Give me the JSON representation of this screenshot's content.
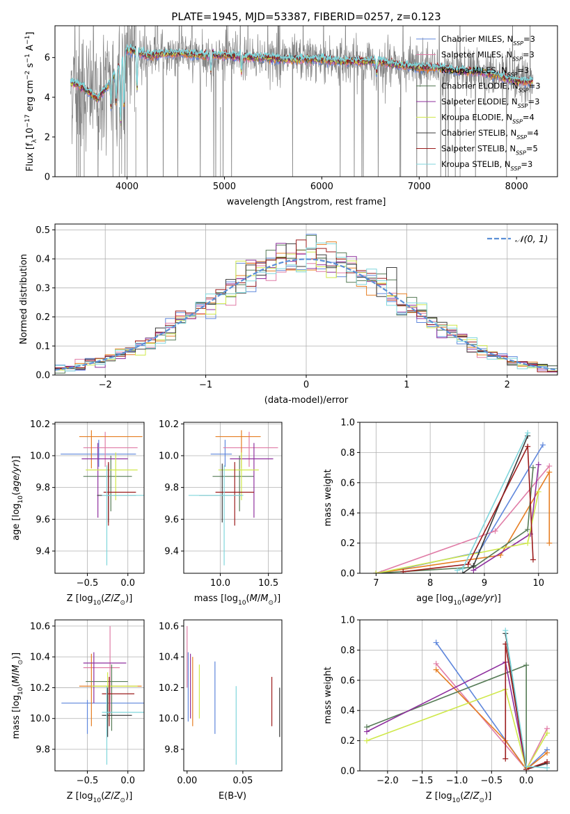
{
  "title": "PLATE=1945, MJD=53387, FIBERID=0257, z=0.123",
  "colors": {
    "data_gray": "#808080",
    "chabrier_miles": "#5f87dc",
    "salpeter_miles": "#e07ca6",
    "kroupa_miles": "#e67e22",
    "chabrier_elodie": "#567b56",
    "salpeter_elodie": "#8e2f9e",
    "kroupa_elodie": "#cfe84a",
    "chabrier_stelib": "#3a3a3a",
    "salpeter_stelib": "#9b1b1b",
    "kroupa_stelib": "#7fd6dc",
    "normal": "#5b8fd6"
  },
  "legend_top": [
    {
      "text": "Chabrier MILES, N",
      "sub": "SSP",
      "tail": "=3",
      "color_key": "chabrier_miles"
    },
    {
      "text": "Salpeter MILES, N",
      "sub": "SSP",
      "tail": "=3",
      "color_key": "salpeter_miles"
    },
    {
      "text": "Kroupa MILES, N",
      "sub": "SSP",
      "tail": "=3",
      "color_key": "kroupa_miles"
    },
    {
      "text": "Chabrier ELODIE, N",
      "sub": "SSP",
      "tail": "=3",
      "color_key": "chabrier_elodie"
    },
    {
      "text": "Salpeter ELODIE, N",
      "sub": "SSP",
      "tail": "=3",
      "color_key": "salpeter_elodie"
    },
    {
      "text": "Kroupa ELODIE, N",
      "sub": "SSP",
      "tail": "=4",
      "color_key": "kroupa_elodie"
    },
    {
      "text": "Chabrier STELIB, N",
      "sub": "SSP",
      "tail": "=4",
      "color_key": "chabrier_stelib"
    },
    {
      "text": "Salpeter STELIB, N",
      "sub": "SSP",
      "tail": "=5",
      "color_key": "salpeter_stelib"
    },
    {
      "text": "Kroupa STELIB, N",
      "sub": "SSP",
      "tail": "=3",
      "color_key": "kroupa_stelib"
    }
  ],
  "chart_data": [
    {
      "id": "spectrum",
      "type": "line",
      "xlabel": "wavelength [Angstrom, rest frame]",
      "ylabel": "Flux [f_λ 10^-17 erg cm^-2 s^-1 A^-1]",
      "xlim": [
        3260,
        8420
      ],
      "ylim": [
        0,
        7.6
      ],
      "xticks": [
        4000,
        5000,
        6000,
        7000,
        8000
      ],
      "yticks": [
        0,
        2,
        4,
        6
      ],
      "grid": false,
      "legend_position": "top-right",
      "continuum_x": [
        3400,
        3500,
        3600,
        3700,
        3800,
        3900,
        4000,
        4100,
        4200,
        4400,
        4600,
        4800,
        5000,
        5200,
        5400,
        5600,
        5800,
        6000,
        6200,
        6400,
        6600,
        6800,
        7000,
        7200,
        7400,
        7600,
        7800,
        8000,
        8200
      ],
      "continuum_y": [
        4.8,
        4.6,
        4.3,
        3.9,
        4.6,
        5.4,
        6.4,
        6.3,
        6.1,
        6.2,
        6.2,
        6.1,
        6.1,
        6.0,
        6.0,
        5.9,
        5.9,
        5.9,
        5.8,
        5.8,
        5.8,
        5.6,
        5.5,
        5.5,
        5.3,
        5.3,
        5.1,
        4.8,
        4.8
      ]
    },
    {
      "id": "residuals",
      "type": "step",
      "xlabel": "(data-model)/error",
      "ylabel": "Normed distribution",
      "xlim": [
        -2.5,
        2.5
      ],
      "ylim": [
        0,
        0.52
      ],
      "xticks": [
        -2,
        -1,
        0,
        1,
        2
      ],
      "yticks": [
        0.0,
        0.1,
        0.2,
        0.3,
        0.4,
        0.5
      ],
      "grid": true,
      "legend": "𝒩(0, 1)",
      "legend_position": "top-right",
      "bin_width": 0.1
    },
    {
      "id": "age_vs_Z",
      "type": "errorbar",
      "xlabel": "Z [log10(Z/Z⊙)]",
      "ylabel": "age [log10(age/yr)]",
      "xlim": [
        -0.9,
        0.2
      ],
      "ylim": [
        9.26,
        10.21
      ],
      "xticks": [
        -0.5,
        0.0
      ],
      "yticks": [
        9.4,
        9.6,
        9.8,
        10.0,
        10.2
      ],
      "grid": true,
      "points": [
        {
          "k": "chabrier_miles",
          "x": -0.36,
          "y": 10.01,
          "xe": [
            -0.83,
            0.1
          ],
          "ye": [
            9.93,
            10.1
          ]
        },
        {
          "k": "salpeter_miles",
          "x": -0.28,
          "y": 10.05,
          "xe": [
            -0.55,
            0.12
          ],
          "ye": [
            9.93,
            10.15
          ]
        },
        {
          "k": "kroupa_miles",
          "x": -0.45,
          "y": 10.12,
          "xe": [
            -0.6,
            0.18
          ],
          "ye": [
            9.92,
            10.16
          ]
        },
        {
          "k": "chabrier_elodie",
          "x": -0.21,
          "y": 9.87,
          "xe": [
            -0.55,
            0.05
          ],
          "ye": [
            9.65,
            10.0
          ]
        },
        {
          "k": "salpeter_elodie",
          "x": -0.37,
          "y": 9.98,
          "xe": [
            -0.57,
            0.0
          ],
          "ye": [
            9.61,
            10.08
          ]
        },
        {
          "k": "kroupa_elodie",
          "x": -0.15,
          "y": 9.91,
          "xe": [
            -0.52,
            0.12
          ],
          "ye": [
            9.72,
            10.02
          ]
        },
        {
          "k": "chabrier_stelib",
          "x": -0.24,
          "y": 9.75,
          "xe": [
            -0.38,
            0.1
          ],
          "ye": [
            9.58,
            9.95
          ]
        },
        {
          "k": "salpeter_stelib",
          "x": -0.24,
          "y": 9.77,
          "xe": [
            -0.3,
            0.1
          ],
          "ye": [
            9.56,
            9.96
          ]
        },
        {
          "k": "kroupa_stelib",
          "x": -0.26,
          "y": 9.75,
          "xe": [
            -0.32,
            0.2
          ],
          "ye": [
            9.31,
            9.94
          ]
        }
      ]
    },
    {
      "id": "age_vs_mass",
      "type": "errorbar",
      "xlabel": "mass [log10(M/M⊙)]",
      "ylabel": "",
      "xlim": [
        9.62,
        10.64
      ],
      "ylim": [
        9.26,
        10.21
      ],
      "xticks": [
        10.0,
        10.5
      ],
      "yticks": [
        9.4,
        9.6,
        9.8,
        10.0,
        10.2
      ],
      "grid": true,
      "points": [
        {
          "k": "chabrier_miles",
          "x": 10.05,
          "y": 10.01,
          "xe": [
            9.9,
            10.12
          ],
          "ye": [
            9.93,
            10.1
          ]
        },
        {
          "k": "salpeter_miles",
          "x": 10.3,
          "y": 10.05,
          "xe": [
            10.03,
            10.6
          ],
          "ye": [
            9.93,
            10.15
          ]
        },
        {
          "k": "kroupa_miles",
          "x": 10.22,
          "y": 10.12,
          "xe": [
            9.95,
            10.42
          ],
          "ye": [
            9.92,
            10.16
          ]
        },
        {
          "k": "chabrier_elodie",
          "x": 10.2,
          "y": 9.87,
          "xe": [
            9.92,
            10.35
          ],
          "ye": [
            9.65,
            10.0
          ]
        },
        {
          "k": "salpeter_elodie",
          "x": 10.35,
          "y": 9.98,
          "xe": [
            10.1,
            10.55
          ],
          "ye": [
            9.61,
            10.08
          ]
        },
        {
          "k": "kroupa_elodie",
          "x": 10.22,
          "y": 9.91,
          "xe": [
            9.98,
            10.4
          ],
          "ye": [
            9.72,
            10.02
          ]
        },
        {
          "k": "chabrier_stelib",
          "x": 10.02,
          "y": 9.75,
          "xe": [
            9.78,
            10.22
          ],
          "ye": [
            9.58,
            9.95
          ]
        },
        {
          "k": "salpeter_stelib",
          "x": 10.15,
          "y": 9.77,
          "xe": [
            9.95,
            10.35
          ],
          "ye": [
            9.56,
            9.96
          ]
        },
        {
          "k": "kroupa_stelib",
          "x": 10.04,
          "y": 9.75,
          "xe": [
            9.67,
            10.24
          ],
          "ye": [
            9.31,
            9.94
          ]
        }
      ]
    },
    {
      "id": "mass_weight_vs_age",
      "type": "line",
      "xlabel": "age [log10(age/yr)]",
      "ylabel": "mass weight",
      "xlim": [
        6.7,
        10.35
      ],
      "ylim": [
        0,
        1
      ],
      "xticks": [
        7,
        8,
        9,
        10
      ],
      "yticks": [
        0.0,
        0.2,
        0.4,
        0.6,
        0.8,
        1.0
      ],
      "grid": true,
      "series": [
        {
          "k": "chabrier_miles",
          "x": [
            7.1,
            8.9,
            10.08
          ],
          "y": [
            0.0,
            0.14,
            0.85
          ]
        },
        {
          "k": "salpeter_miles",
          "x": [
            7.0,
            9.2,
            10.2
          ],
          "y": [
            0.0,
            0.28,
            0.71
          ]
        },
        {
          "k": "kroupa_miles",
          "x": [
            7.0,
            9.3,
            10.2,
            10.2
          ],
          "y": [
            0.0,
            0.12,
            0.67,
            0.2
          ]
        },
        {
          "k": "chabrier_elodie",
          "x": [
            7.0,
            8.8,
            9.8,
            9.9
          ],
          "y": [
            0.0,
            0.04,
            0.29,
            0.7
          ]
        },
        {
          "k": "salpeter_elodie",
          "x": [
            8.8,
            9.85,
            10.0
          ],
          "y": [
            0.02,
            0.26,
            0.72
          ]
        },
        {
          "k": "kroupa_elodie",
          "x": [
            7.0,
            9.8,
            10.0
          ],
          "y": [
            0.0,
            0.2,
            0.54
          ]
        },
        {
          "k": "chabrier_stelib",
          "x": [
            8.6,
            8.8,
            9.8
          ],
          "y": [
            0.0,
            0.05,
            0.91
          ]
        },
        {
          "k": "salpeter_stelib",
          "x": [
            7.5,
            8.7,
            9.8,
            9.9
          ],
          "y": [
            0.01,
            0.06,
            0.84,
            0.09
          ]
        },
        {
          "k": "kroupa_stelib",
          "x": [
            8.5,
            8.6,
            9.8
          ],
          "y": [
            0.02,
            0.03,
            0.93
          ]
        }
      ]
    },
    {
      "id": "mass_vs_Z",
      "type": "errorbar",
      "xlabel": "Z [log10(Z/Z⊙)]",
      "ylabel": "mass [log10(M/M⊙)]",
      "xlim": [
        -0.9,
        0.2
      ],
      "ylim": [
        9.66,
        10.64
      ],
      "xticks": [
        -0.5,
        0.0
      ],
      "yticks": [
        9.8,
        10.0,
        10.2,
        10.4,
        10.6
      ],
      "grid": true,
      "points": [
        {
          "k": "chabrier_miles",
          "x": -0.5,
          "y": 10.1,
          "xe": [
            -0.82,
            0.2
          ],
          "ye": [
            9.9,
            10.12
          ]
        },
        {
          "k": "salpeter_miles",
          "x": -0.22,
          "y": 10.33,
          "xe": [
            -0.55,
            -0.1
          ],
          "ye": [
            10.03,
            10.6
          ]
        },
        {
          "k": "kroupa_miles",
          "x": -0.45,
          "y": 10.21,
          "xe": [
            -0.6,
            0.17
          ],
          "ye": [
            9.95,
            10.42
          ]
        },
        {
          "k": "chabrier_elodie",
          "x": -0.2,
          "y": 10.24,
          "xe": [
            -0.52,
            0.0
          ],
          "ye": [
            9.92,
            10.35
          ]
        },
        {
          "k": "salpeter_elodie",
          "x": -0.42,
          "y": 10.36,
          "xe": [
            -0.55,
            -0.02
          ],
          "ye": [
            10.1,
            10.43
          ]
        },
        {
          "k": "kroupa_elodie",
          "x": -0.25,
          "y": 10.21,
          "xe": [
            -0.45,
            0.12
          ],
          "ye": [
            9.98,
            10.3
          ]
        },
        {
          "k": "chabrier_stelib",
          "x": -0.25,
          "y": 10.02,
          "xe": [
            -0.32,
            0.05
          ],
          "ye": [
            9.88,
            10.2
          ]
        },
        {
          "k": "salpeter_stelib",
          "x": -0.23,
          "y": 10.16,
          "xe": [
            -0.32,
            0.08
          ],
          "ye": [
            9.95,
            10.27
          ]
        },
        {
          "k": "kroupa_stelib",
          "x": -0.26,
          "y": 10.04,
          "xe": [
            -0.32,
            0.2
          ],
          "ye": [
            9.7,
            10.21
          ]
        }
      ]
    },
    {
      "id": "mass_vs_ebv",
      "type": "errorbar",
      "xlabel": "E(B-V)",
      "ylabel": "",
      "xlim": [
        -0.003,
        0.085
      ],
      "ylim": [
        9.66,
        10.64
      ],
      "xticks": [
        0.0,
        0.05
      ],
      "yticks": [
        9.8,
        10.0,
        10.2,
        10.4,
        10.6
      ],
      "grid": false,
      "points": [
        {
          "k": "salpeter_miles",
          "x": 0.0,
          "y": 10.4,
          "ye": [
            10.2,
            10.6
          ]
        },
        {
          "k": "chabrier_miles",
          "x": 0.001,
          "y": 10.2,
          "ye": [
            9.98,
            10.43
          ]
        },
        {
          "k": "salpeter_elodie",
          "x": 0.003,
          "y": 10.2,
          "ye": [
            10.0,
            10.42
          ]
        },
        {
          "k": "kroupa_miles",
          "x": 0.005,
          "y": 10.2,
          "ye": [
            9.95,
            10.4
          ]
        },
        {
          "k": "kroupa_elodie",
          "x": 0.011,
          "y": 10.2,
          "ye": [
            10.0,
            10.35
          ]
        },
        {
          "k": "chabrier_miles",
          "x": 0.025,
          "y": 10.1,
          "ye": [
            9.9,
            10.37
          ]
        },
        {
          "k": "kroupa_stelib",
          "x": 0.044,
          "y": 9.95,
          "ye": [
            9.7,
            10.21
          ]
        },
        {
          "k": "salpeter_stelib",
          "x": 0.076,
          "y": 10.12,
          "ye": [
            9.95,
            10.27
          ]
        },
        {
          "k": "chabrier_stelib",
          "x": 0.083,
          "y": 10.05,
          "ye": [
            9.88,
            10.2
          ]
        }
      ]
    },
    {
      "id": "mass_weight_vs_Z",
      "type": "line",
      "xlabel": "Z [log10(Z/Z⊙)]",
      "ylabel": "mass weight",
      "xlim": [
        -2.4,
        0.45
      ],
      "ylim": [
        0,
        1
      ],
      "xticks": [
        -2.0,
        -1.5,
        -1.0,
        -0.5,
        0.0
      ],
      "yticks": [
        0.0,
        0.2,
        0.4,
        0.6,
        0.8,
        1.0
      ],
      "grid": true,
      "series": [
        {
          "k": "chabrier_miles",
          "x": [
            -1.3,
            0.0,
            0.3
          ],
          "y": [
            0.85,
            0.01,
            0.14
          ]
        },
        {
          "k": "salpeter_miles",
          "x": [
            -1.3,
            0.0,
            0.3
          ],
          "y": [
            0.71,
            0.01,
            0.28
          ]
        },
        {
          "k": "kroupa_miles",
          "x": [
            -1.3,
            -0.3,
            0.0,
            0.3
          ],
          "y": [
            0.67,
            0.2,
            0.01,
            0.12
          ]
        },
        {
          "k": "chabrier_elodie",
          "x": [
            -2.3,
            0.0,
            0.0
          ],
          "y": [
            0.29,
            0.7,
            0.01
          ]
        },
        {
          "k": "salpeter_elodie",
          "x": [
            -2.3,
            -0.3,
            0.0
          ],
          "y": [
            0.26,
            0.72,
            0.01
          ]
        },
        {
          "k": "kroupa_elodie",
          "x": [
            -2.3,
            -0.3,
            0.0,
            0.3
          ],
          "y": [
            0.2,
            0.54,
            0.01,
            0.25
          ]
        },
        {
          "k": "chabrier_stelib",
          "x": [
            -0.3,
            0.0,
            0.3
          ],
          "y": [
            0.91,
            0.01,
            0.05
          ]
        },
        {
          "k": "salpeter_stelib",
          "x": [
            -0.3,
            -0.3,
            0.0,
            0.3
          ],
          "y": [
            0.08,
            0.84,
            0.01,
            0.06
          ]
        },
        {
          "k": "kroupa_stelib",
          "x": [
            -0.3,
            0.0,
            0.3
          ],
          "y": [
            0.93,
            0.03,
            0.02
          ]
        }
      ]
    }
  ]
}
